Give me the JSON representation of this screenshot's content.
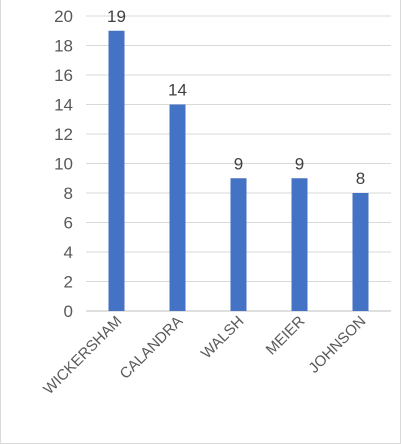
{
  "chart_data": {
    "type": "bar",
    "categories": [
      "WICKERSHAM",
      "CALANDRA",
      "WALSH",
      "MEIER",
      "JOHNSON"
    ],
    "values": [
      19,
      14,
      9,
      9,
      8
    ],
    "data_labels": [
      "19",
      "14",
      "9",
      "9",
      "8"
    ],
    "title": "",
    "xlabel": "",
    "ylabel": "",
    "ylim": [
      0,
      20
    ],
    "yticks": [
      0,
      2,
      4,
      6,
      8,
      10,
      12,
      14,
      16,
      18,
      20
    ],
    "grid": true,
    "legend": "none",
    "colors": {
      "bar": "#4472C4",
      "grid": "#d9d9d9",
      "text": "#595959"
    }
  }
}
